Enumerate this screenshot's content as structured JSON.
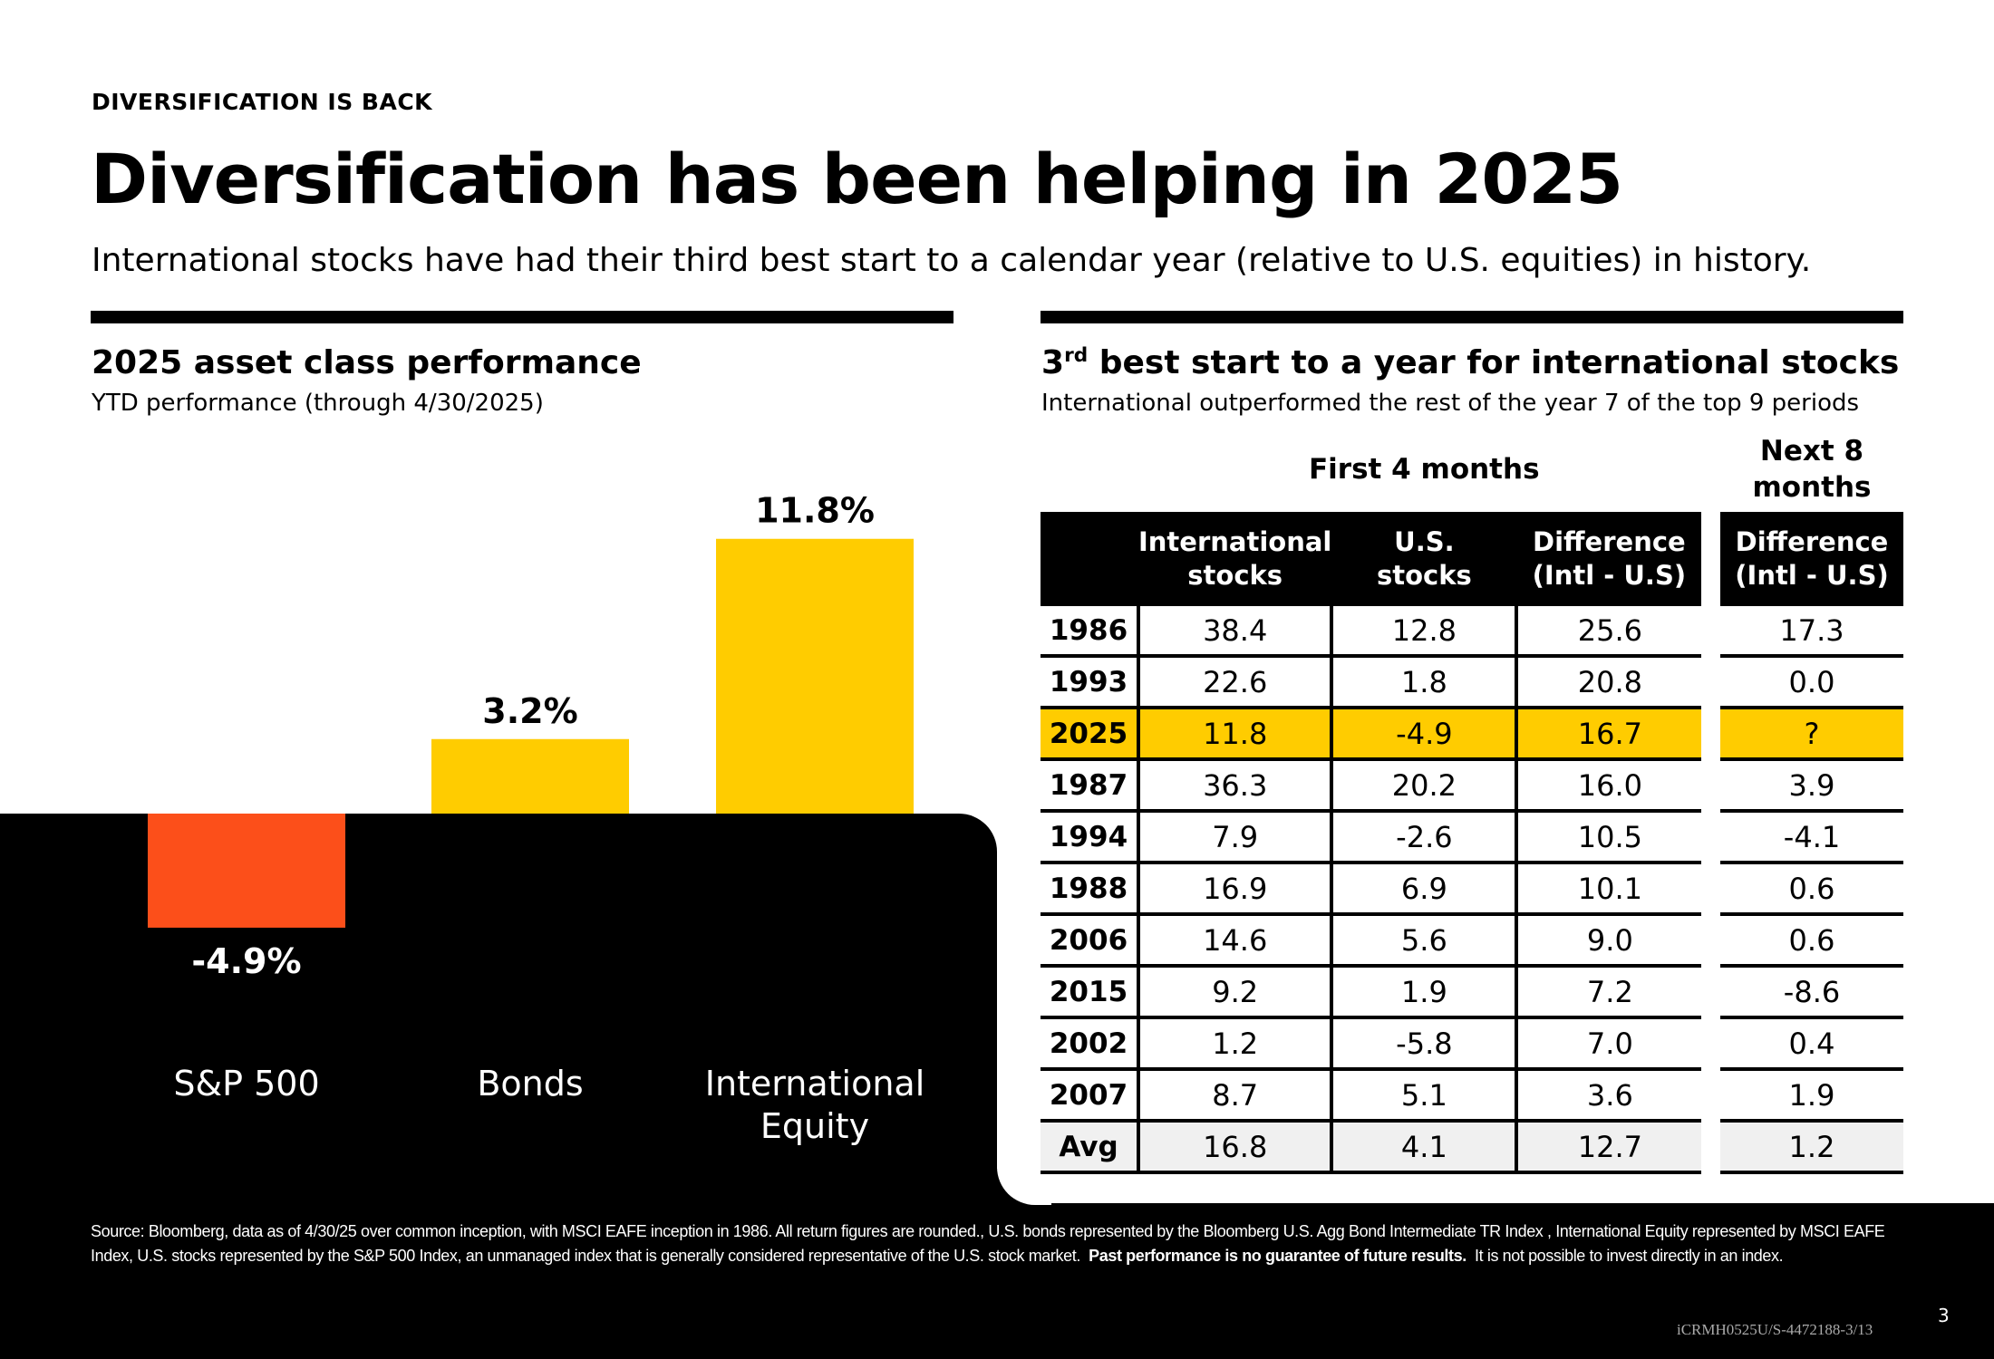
{
  "header": {
    "kicker": "DIVERSIFICATION IS BACK",
    "title": "Diversification has been helping in 2025",
    "subtitle": "International stocks have had their third best start to a calendar year (relative to U.S. equities) in history."
  },
  "left_panel": {
    "title": "2025 asset class performance",
    "subtitle": "YTD performance (through 4/30/2025)"
  },
  "right_panel": {
    "title_pre": "3",
    "title_sup": "rd",
    "title_post": " best start to a year for international stocks",
    "subtitle": "International outperformed the rest of the year 7 of the top 9 periods"
  },
  "colors": {
    "negative": "#fc4f1a",
    "positive": "#ffcc00",
    "highlight": "#ffcc00",
    "background_dark": "#000000"
  },
  "chart_data": [
    {
      "type": "bar",
      "categories": [
        "S&P 500",
        "Bonds",
        "International Equity"
      ],
      "category_lines": [
        [
          "S&P 500"
        ],
        [
          "Bonds"
        ],
        [
          "International",
          "Equity"
        ]
      ],
      "values": [
        -4.9,
        3.2,
        11.8
      ],
      "data_labels": [
        "-4.9%",
        "3.2%",
        "11.8%"
      ],
      "title": "2025 asset class performance",
      "subtitle": "YTD performance (through 4/30/2025)",
      "xlabel": "",
      "ylabel": "",
      "grid": false
    },
    {
      "type": "table",
      "title": "3rd best start to a year for international stocks",
      "group_headers": [
        "First 4 months",
        "Next 8 months"
      ],
      "columns": [
        "International stocks",
        "U.S. stocks",
        "Difference (Intl - U.S)",
        "Difference (Intl - U.S)"
      ],
      "rows": [
        {
          "year": "1986",
          "intl": "38.4",
          "us": "12.8",
          "diff": "25.6",
          "next": "17.3",
          "highlight": false
        },
        {
          "year": "1993",
          "intl": "22.6",
          "us": "1.8",
          "diff": "20.8",
          "next": "0.0",
          "highlight": false
        },
        {
          "year": "2025",
          "intl": "11.8",
          "us": "-4.9",
          "diff": "16.7",
          "next": "?",
          "highlight": true
        },
        {
          "year": "1987",
          "intl": "36.3",
          "us": "20.2",
          "diff": "16.0",
          "next": "3.9",
          "highlight": false
        },
        {
          "year": "1994",
          "intl": "7.9",
          "us": "-2.6",
          "diff": "10.5",
          "next": "-4.1",
          "highlight": false
        },
        {
          "year": "1988",
          "intl": "16.9",
          "us": "6.9",
          "diff": "10.1",
          "next": "0.6",
          "highlight": false
        },
        {
          "year": "2006",
          "intl": "14.6",
          "us": "5.6",
          "diff": "9.0",
          "next": "0.6",
          "highlight": false
        },
        {
          "year": "2015",
          "intl": "9.2",
          "us": "1.9",
          "diff": "7.2",
          "next": "-8.6",
          "highlight": false
        },
        {
          "year": "2002",
          "intl": "1.2",
          "us": "-5.8",
          "diff": "7.0",
          "next": "0.4",
          "highlight": false
        },
        {
          "year": "2007",
          "intl": "8.7",
          "us": "5.1",
          "diff": "3.6",
          "next": "1.9",
          "highlight": false
        },
        {
          "year": "Avg",
          "intl": "16.8",
          "us": "4.1",
          "diff": "12.7",
          "next": "1.2",
          "highlight": false,
          "average": true
        }
      ]
    }
  ],
  "table_headers": {
    "group_first": "First 4 months",
    "group_next_l1": "Next 8",
    "group_next_l2": "months",
    "intl_l1": "International",
    "intl_l2": "stocks",
    "us_l1": "U.S.",
    "us_l2": "stocks",
    "diff_l1": "Difference",
    "diff_l2": "(Intl - U.S)",
    "next_l1": "Difference",
    "next_l2": "(Intl - U.S)"
  },
  "footer": {
    "source_text": "Source: Bloomberg, data as of 4/30/25 over common inception, with MSCI EAFE inception in 1986. All return figures are rounded., U.S. bonds represented by the Bloomberg U.S. Agg Bond Intermediate TR Index , International Equity represented by MSCI EAFE Index, U.S. stocks represented by the S&P 500 Index, an unmanaged index that is generally considered representative of the U.S. stock market.",
    "source_bold": "Past performance is no guarantee of future results.",
    "source_tail": "It is not possible to invest directly in an index.",
    "page_number": "3",
    "doc_code": "iCRMH0525U/S-4472188-3/13"
  }
}
